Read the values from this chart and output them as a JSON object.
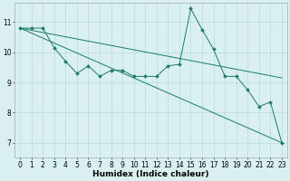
{
  "line_zigzag": {
    "x": [
      0,
      1,
      2,
      3,
      4,
      5,
      6,
      7,
      8,
      9,
      10,
      11,
      12,
      13,
      14,
      15,
      16,
      17,
      18,
      19,
      20,
      21,
      22,
      23
    ],
    "y": [
      10.8,
      10.8,
      10.8,
      10.15,
      9.7,
      9.3,
      9.55,
      9.2,
      9.4,
      9.4,
      9.2,
      9.2,
      9.2,
      9.55,
      9.6,
      11.45,
      10.75,
      10.1,
      9.2,
      9.2,
      8.75,
      8.2,
      8.35,
      7.0
    ]
  },
  "line_steep": {
    "x": [
      0,
      23
    ],
    "y": [
      10.8,
      7.0
    ]
  },
  "line_shallow": {
    "x": [
      0,
      23
    ],
    "y": [
      10.8,
      9.15
    ]
  },
  "line_color": "#1a7a6e",
  "background_color": "#daf0f0",
  "grid_color": "#aed8d8",
  "xlabel": "Humidex (Indice chaleur)",
  "xlim": [
    -0.5,
    23.5
  ],
  "ylim": [
    6.5,
    11.65
  ],
  "xticks": [
    0,
    1,
    2,
    3,
    4,
    5,
    6,
    7,
    8,
    9,
    10,
    11,
    12,
    13,
    14,
    15,
    16,
    17,
    18,
    19,
    20,
    21,
    22,
    23
  ],
  "yticks": [
    7,
    8,
    9,
    10,
    11
  ],
  "xlabel_fontsize": 6.5,
  "tick_fontsize": 5.5,
  "lw": 0.7,
  "markersize": 2.0
}
